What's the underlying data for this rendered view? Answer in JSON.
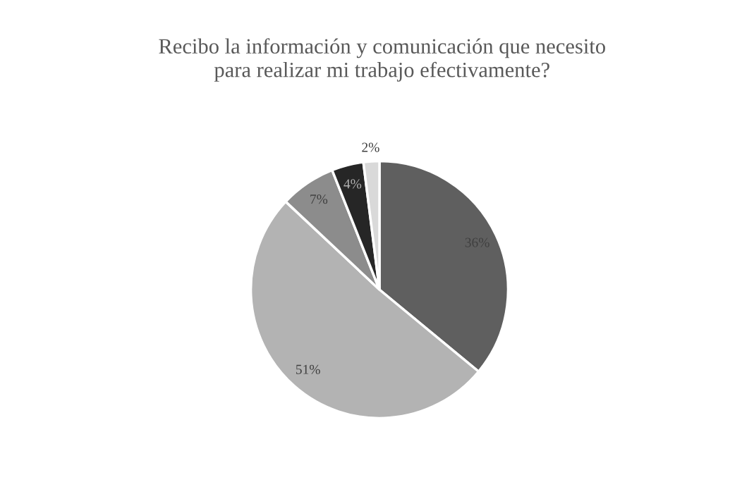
{
  "chart_data": {
    "type": "pie",
    "title": "Recibo la información y comunicación que necesito\npara realizar mi trabajo efectivamente?",
    "categories": [
      null,
      null,
      null,
      null,
      null
    ],
    "values": [
      36,
      51,
      7,
      4,
      2
    ],
    "colors": [
      "#5f5f5f",
      "#b3b3b3",
      "#8c8c8c",
      "#262626",
      "#d9d9d9"
    ],
    "value_labels": [
      "36%",
      "51%",
      "7%",
      "4%",
      "2%"
    ],
    "legend": false
  }
}
